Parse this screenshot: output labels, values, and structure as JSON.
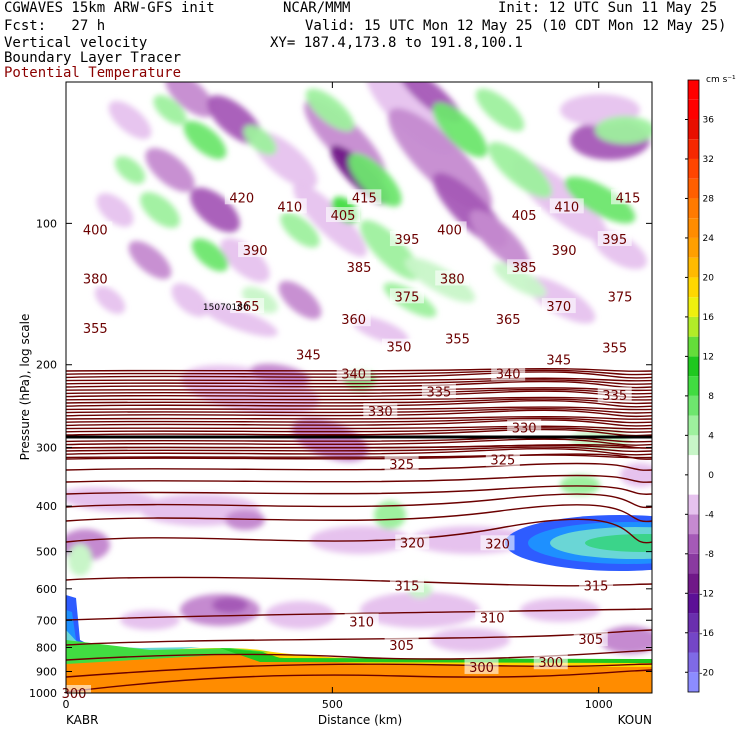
{
  "header": {
    "model_line": "CGWAVES 15km ARW-GFS init",
    "fcst_line": "Fcst:   27 h",
    "org": "NCAR/MMM",
    "init_line": "Init: 12 UTC Sun 11 May 25",
    "valid_line": "Valid: 15 UTC Mon 12 May 25 (10 CDT Mon 12 May 25)",
    "xy_line": "XY= 187.4,173.8 to 191.8,100.1",
    "field1": "Vertical velocity",
    "field2": "Boundary Layer Tracer",
    "field3": "Potential Temperature"
  },
  "colors": {
    "theta_contour": "#6b0000",
    "title_field3": "#8b0000"
  },
  "chart_data": {
    "type": "heatmap",
    "xlabel": "Distance (km)",
    "ylabel": "Pressure (hPa), log scale",
    "x_left_label": "KABR",
    "x_right_label": "KOUN",
    "xlim": [
      0,
      1100
    ],
    "x_ticks": [
      0,
      500,
      1000
    ],
    "ylim": [
      1000,
      50
    ],
    "y_scale": "log",
    "y_ticks": [
      100,
      200,
      300,
      400,
      500,
      600,
      700,
      800,
      900,
      1000
    ],
    "colorbar": {
      "unit": "cm s⁻¹",
      "levels": [
        -22,
        -20,
        -18,
        -16,
        -14,
        -12,
        -10,
        -8,
        -6,
        -4,
        -2,
        2,
        4,
        6,
        8,
        10,
        12,
        14,
        16,
        18,
        20,
        22,
        24,
        26,
        28,
        30,
        32,
        34,
        36,
        38,
        40
      ],
      "colors": [
        "#8c8cff",
        "#7f6ae6",
        "#7446c7",
        "#6a2fae",
        "#5c1096",
        "#701888",
        "#8a3aa0",
        "#a55ab7",
        "#c58ad0",
        "#e6c2ee",
        "#ffffff",
        "#c8f5c8",
        "#9ef09e",
        "#6ee66e",
        "#41dc41",
        "#1fc81f",
        "#64dd3a",
        "#b2ec28",
        "#eef00e",
        "#ffd700",
        "#ffba00",
        "#ff9f00",
        "#ff8c00",
        "#ff7a00",
        "#ff5f00",
        "#ff4500",
        "#f62800",
        "#e80f00",
        "#ff0000",
        "#ff0000"
      ],
      "tick_labels": [
        "-20",
        "-16",
        "-12",
        "-8",
        "-4",
        "0",
        "4",
        "8",
        "12",
        "16",
        "20",
        "24",
        "28",
        "32",
        "36"
      ],
      "tick_values": [
        -20,
        -16,
        -12,
        -8,
        -4,
        0,
        4,
        8,
        12,
        16,
        20,
        24,
        28,
        32,
        36
      ]
    },
    "theta_labels": [
      {
        "value": "420",
        "x": 330,
        "p": 88
      },
      {
        "value": "410",
        "x": 420,
        "p": 92
      },
      {
        "value": "415",
        "x": 560,
        "p": 88
      },
      {
        "value": "410",
        "x": 940,
        "p": 92
      },
      {
        "value": "415",
        "x": 1055,
        "p": 88
      },
      {
        "value": "405",
        "x": 520,
        "p": 96
      },
      {
        "value": "405",
        "x": 860,
        "p": 96
      },
      {
        "value": "400",
        "x": 55,
        "p": 103
      },
      {
        "value": "395",
        "x": 640,
        "p": 108
      },
      {
        "value": "400",
        "x": 720,
        "p": 103
      },
      {
        "value": "395",
        "x": 1030,
        "p": 108
      },
      {
        "value": "390",
        "x": 355,
        "p": 114
      },
      {
        "value": "390",
        "x": 935,
        "p": 114
      },
      {
        "value": "385",
        "x": 550,
        "p": 124
      },
      {
        "value": "385",
        "x": 860,
        "p": 124
      },
      {
        "value": "380",
        "x": 55,
        "p": 131
      },
      {
        "value": "380",
        "x": 725,
        "p": 131
      },
      {
        "value": "375",
        "x": 640,
        "p": 143
      },
      {
        "value": "375",
        "x": 1040,
        "p": 143
      },
      {
        "value": "370",
        "x": 925,
        "p": 150
      },
      {
        "value": "365",
        "x": 340,
        "p": 150
      },
      {
        "value": "365",
        "x": 830,
        "p": 160
      },
      {
        "value": "360",
        "x": 540,
        "p": 160
      },
      {
        "value": "355",
        "x": 55,
        "p": 167
      },
      {
        "value": "355",
        "x": 735,
        "p": 176
      },
      {
        "value": "355",
        "x": 1030,
        "p": 184
      },
      {
        "value": "350",
        "x": 625,
        "p": 183
      },
      {
        "value": "345",
        "x": 455,
        "p": 190
      },
      {
        "value": "345",
        "x": 925,
        "p": 195
      },
      {
        "value": "340",
        "x": 540,
        "p": 209
      },
      {
        "value": "340",
        "x": 830,
        "p": 209
      },
      {
        "value": "335",
        "x": 700,
        "p": 228
      },
      {
        "value": "335",
        "x": 1030,
        "p": 232
      },
      {
        "value": "330",
        "x": 590,
        "p": 251
      },
      {
        "value": "330",
        "x": 860,
        "p": 272
      },
      {
        "value": "325",
        "x": 630,
        "p": 325
      },
      {
        "value": "325",
        "x": 820,
        "p": 318
      },
      {
        "value": "320",
        "x": 650,
        "p": 478
      },
      {
        "value": "320",
        "x": 810,
        "p": 480
      },
      {
        "value": "315",
        "x": 640,
        "p": 590
      },
      {
        "value": "315",
        "x": 995,
        "p": 590
      },
      {
        "value": "310",
        "x": 555,
        "p": 704
      },
      {
        "value": "310",
        "x": 800,
        "p": 690
      },
      {
        "value": "305",
        "x": 630,
        "p": 790
      },
      {
        "value": "305",
        "x": 985,
        "p": 768
      },
      {
        "value": "300",
        "x": 780,
        "p": 880
      },
      {
        "value": "300",
        "x": 910,
        "p": 860
      },
      {
        "value": "300",
        "x": 15,
        "p": 1000
      }
    ],
    "tropopause_label": "15070180"
  }
}
